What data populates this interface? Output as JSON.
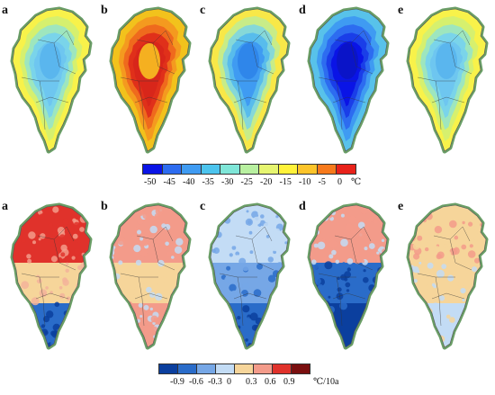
{
  "rows": [
    {
      "panels": [
        {
          "label": "a",
          "scheme": "mild"
        },
        {
          "label": "b",
          "scheme": "warm"
        },
        {
          "label": "c",
          "scheme": "mild2"
        },
        {
          "label": "d",
          "scheme": "cold"
        },
        {
          "label": "e",
          "scheme": "mild"
        }
      ]
    },
    {
      "panels": [
        {
          "label": "a",
          "scheme": "trend_warm_north"
        },
        {
          "label": "b",
          "scheme": "trend_mixed"
        },
        {
          "label": "c",
          "scheme": "trend_cool"
        },
        {
          "label": "d",
          "scheme": "trend_cool_east"
        },
        {
          "label": "e",
          "scheme": "trend_mixed_warm"
        }
      ]
    }
  ],
  "legend_temperature": {
    "ticks": [
      "-50",
      "-45",
      "-40",
      "-35",
      "-30",
      "-25",
      "-20",
      "-15",
      "-10",
      "-5",
      "0"
    ],
    "unit": "℃",
    "colors": [
      "#0a14e6",
      "#2d6cf0",
      "#3f9bf2",
      "#4cc4ee",
      "#7fe6d8",
      "#b8f0a0",
      "#e6f570",
      "#fff23a",
      "#fcc42a",
      "#f77a1c",
      "#e8221a"
    ]
  },
  "legend_trend": {
    "ticks": [
      "-0.9",
      "-0.6",
      "-0.3",
      "0",
      "0.3",
      "0.6",
      "0.9"
    ],
    "unit": "℃/10a",
    "colors": [
      "#0b3f9e",
      "#2a6cc9",
      "#76a7e6",
      "#c3dcf5",
      "#f6d59a",
      "#f39b8a",
      "#e0322b",
      "#7a0f0f"
    ]
  }
}
